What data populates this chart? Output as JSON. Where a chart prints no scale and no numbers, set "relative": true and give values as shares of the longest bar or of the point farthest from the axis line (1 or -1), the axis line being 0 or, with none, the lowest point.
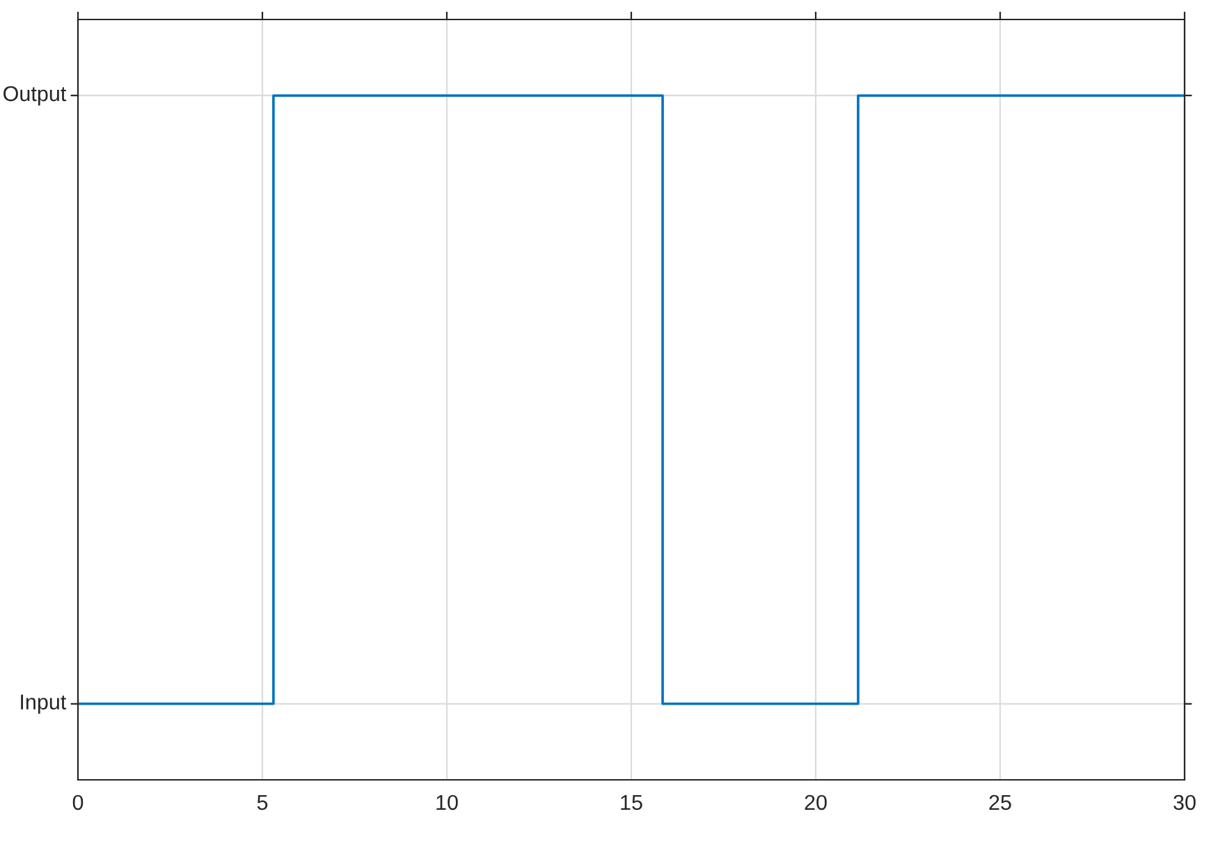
{
  "chart_data": {
    "type": "step",
    "relative": true,
    "x": [
      0,
      5.3,
      15.85,
      21.15,
      30
    ],
    "series": [
      {
        "color": "#0072bd",
        "values": [
          0,
          1,
          0,
          1,
          1
        ]
      }
    ],
    "annotations": [
      "Input",
      "Output"
    ],
    "xlim": [
      0,
      30
    ],
    "xticks": [
      0,
      5,
      10,
      15,
      20,
      25,
      30
    ],
    "grid": true
  }
}
